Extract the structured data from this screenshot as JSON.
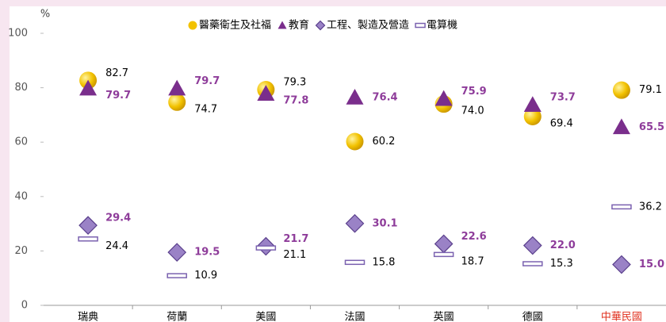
{
  "chart_data": {
    "type": "dot",
    "y_label": "%",
    "categories": [
      "瑞典",
      "荷蘭",
      "美國",
      "法國",
      "英國",
      "德國",
      "中華民國"
    ],
    "highlight_category_color": "#e0301e",
    "series": [
      {
        "name": "醫藥衛生及社福",
        "marker": "circle",
        "color": "#f2c200",
        "label_color": "#000000",
        "values": [
          82.7,
          74.7,
          79.3,
          60.2,
          74.0,
          69.4,
          79.1
        ],
        "value_labels": [
          "82.7",
          "74.7",
          "79.3",
          "60.2",
          "74.0",
          "69.4",
          "79.1"
        ]
      },
      {
        "name": "教育",
        "marker": "triangle",
        "color": "#7a2e8c",
        "label_color": "#8e3c9a",
        "values": [
          79.7,
          79.7,
          77.8,
          76.4,
          75.9,
          73.7,
          65.5
        ],
        "value_labels": [
          "79.7",
          "79.7",
          "77.8",
          "76.4",
          "75.9",
          "73.7",
          "65.5"
        ]
      },
      {
        "name": "工程、製造及營造",
        "marker": "diamond",
        "color": "#9a82c6",
        "label_color": "#8e3c9a",
        "values": [
          29.4,
          19.5,
          21.7,
          30.1,
          22.6,
          22.0,
          15.0
        ],
        "value_labels": [
          "29.4",
          "19.5",
          "21.7",
          "30.1",
          "22.6",
          "22.0",
          "15.0"
        ]
      },
      {
        "name": "電算機",
        "marker": "bar",
        "color": "#7b62b0",
        "label_color": "#000000",
        "values": [
          24.4,
          10.9,
          21.1,
          15.8,
          18.7,
          15.3,
          36.2
        ],
        "value_labels": [
          "24.4",
          "10.9",
          "21.1",
          "15.8",
          "18.7",
          "15.3",
          "36.2"
        ]
      }
    ],
    "ylim": [
      0,
      100
    ],
    "yticks": [
      0,
      20,
      40,
      60,
      80,
      100
    ]
  }
}
